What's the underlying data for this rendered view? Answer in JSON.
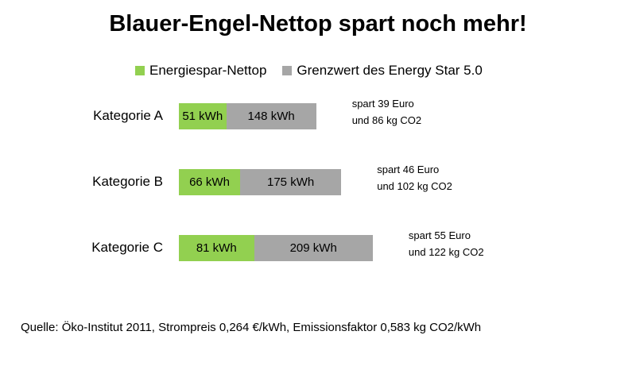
{
  "chart_data": {
    "type": "bar",
    "orientation": "horizontal",
    "stacked": true,
    "title": "Blauer-Engel-Nettop spart noch mehr!",
    "legend_position": "top",
    "categories": [
      "Kategorie A",
      "Kategorie B",
      "Kategorie C"
    ],
    "series": [
      {
        "name": "Energiespar-Nettop",
        "color": "#92d050",
        "values": [
          51,
          66,
          81
        ],
        "labels": [
          "51 kWh",
          "66 kWh",
          "81 kWh"
        ]
      },
      {
        "name": "Grenzwert des Energy Star 5.0",
        "color": "#a6a6a6",
        "values": [
          148,
          175,
          209
        ],
        "labels": [
          "148 kWh",
          "175 kWh",
          "209 kWh"
        ]
      }
    ],
    "annotations": [
      {
        "line1": "spart 39 Euro",
        "line2": "und 86 kg CO2"
      },
      {
        "line1": "spart 46 Euro",
        "line2": "und 102 kg CO2"
      },
      {
        "line1": "spart 55 Euro",
        "line2": "und 122 kg CO2"
      }
    ],
    "grid": false,
    "axes_visible": false
  },
  "footer": {
    "source": "Quelle: Öko-Institut 2011, Strompreis 0,264 €/kWh, Emissionsfaktor 0,583 kg CO2/kWh"
  }
}
